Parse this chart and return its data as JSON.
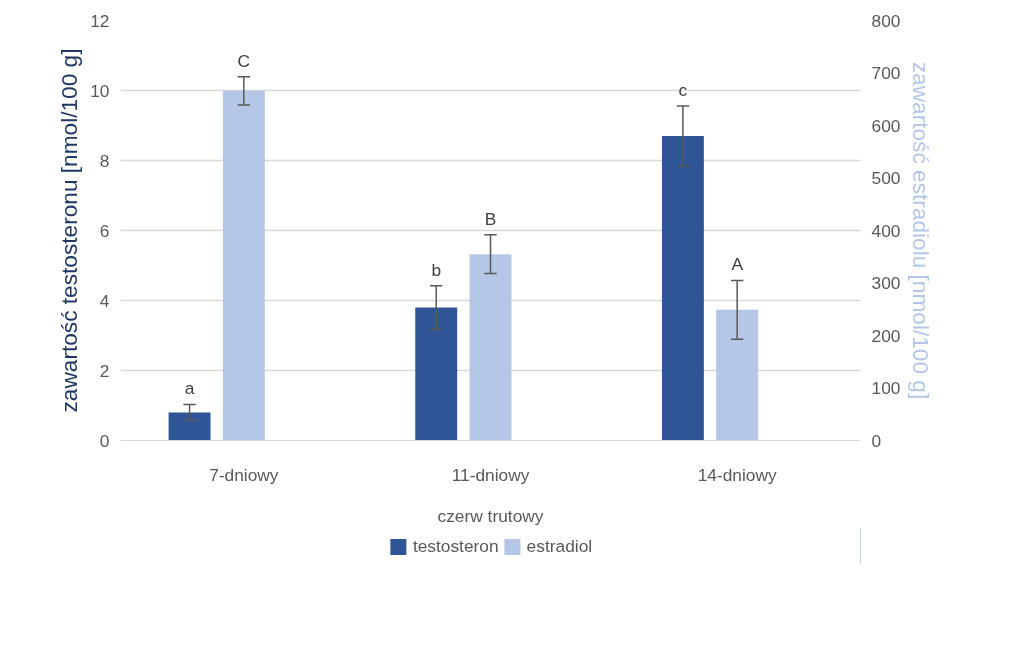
{
  "chart_data": {
    "type": "bar",
    "xlabel": "czerw trutowy",
    "ylabel": "zawartość testosteronu [nmol/100 g]",
    "y2label": "zawartość estradiolu [nmol/100 g]",
    "categories": [
      "7-dniowy",
      "11-dniowy",
      "14-dniowy"
    ],
    "series": [
      {
        "name": "testosteron",
        "color": "#2f5597",
        "values": [
          0.8,
          3.8,
          8.7
        ],
        "errors": [
          0.23,
          0.62,
          0.86
        ]
      },
      {
        "name": "estradiol",
        "color": "#b4c7e7",
        "values": [
          666,
          355,
          249
        ],
        "errors": [
          27,
          37,
          56
        ],
        "axis": "y2"
      }
    ],
    "ylim": [
      0,
      12
    ],
    "yticks": [
      0,
      2,
      4,
      6,
      8,
      10,
      12
    ],
    "y2lim": [
      0,
      800
    ],
    "y2ticks": [
      0,
      100,
      200,
      300,
      400,
      500,
      600,
      700,
      800
    ],
    "annotations": [
      "a",
      "C",
      "b",
      "B",
      "c",
      "A"
    ],
    "grid": "y",
    "legend": "bottom"
  }
}
